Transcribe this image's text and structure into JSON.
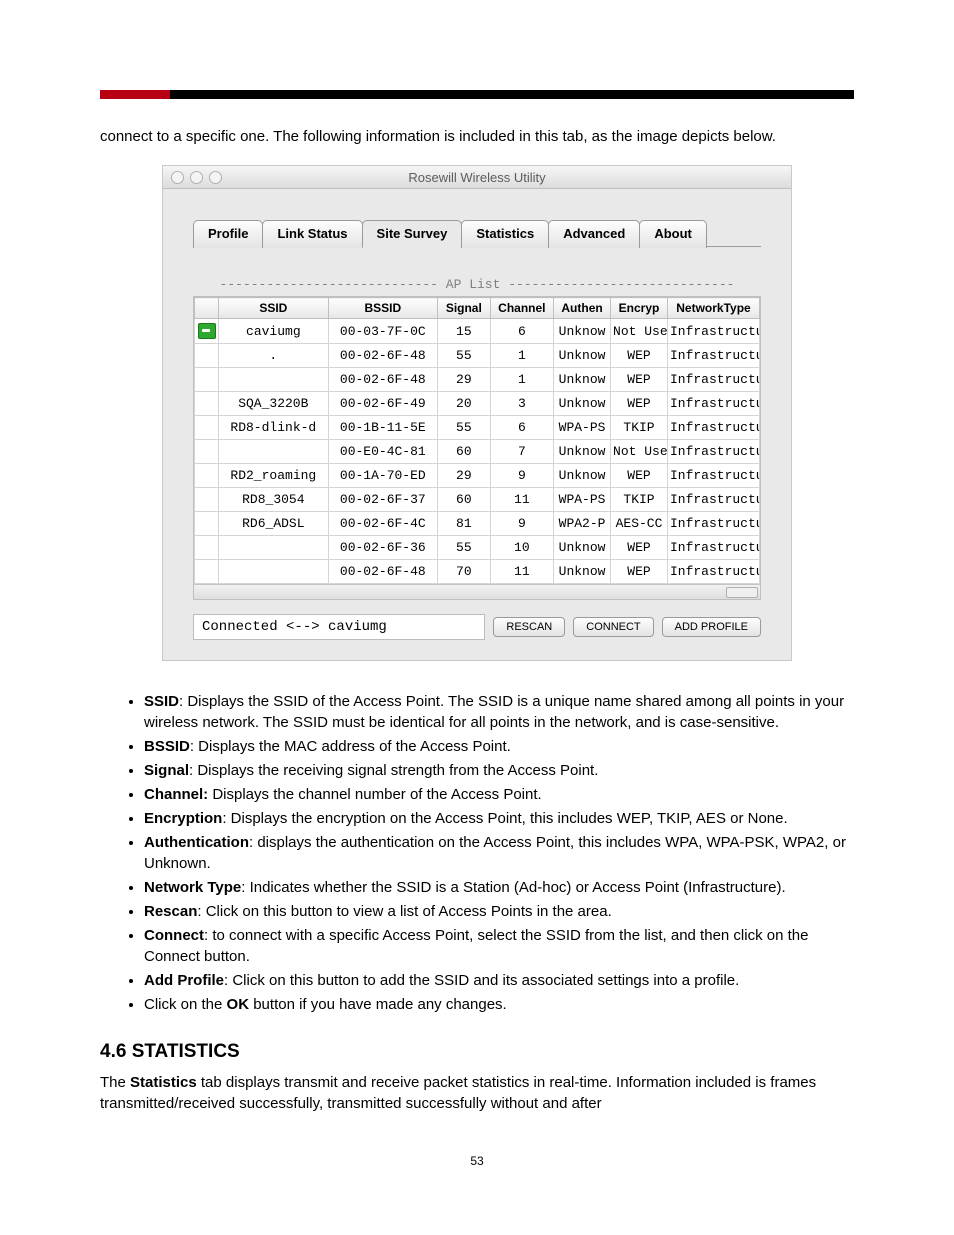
{
  "topbar": {
    "red_color": "#b80015",
    "black_color": "#000000"
  },
  "intro": "connect to a specific one.  The following information is included in this tab, as the image depicts below.",
  "window": {
    "title": "Rosewill Wireless Utility",
    "tabs": [
      "Profile",
      "Link Status",
      "Site Survey",
      "Statistics",
      "Advanced",
      "About"
    ],
    "active_tab_index": 2,
    "ap_list_label": "----------------------------  AP List  -----------------------------",
    "columns": {
      "icon": "",
      "ssid": "SSID",
      "bssid": "BSSID",
      "signal": "Signal",
      "channel": "Channel",
      "authen": "Authen",
      "encryp": "Encryp",
      "ntype": "NetworkType"
    },
    "col_widths": {
      "icon": 22,
      "ssid": 100,
      "bssid": 100,
      "signal": 48,
      "channel": 58,
      "authen": 52,
      "encryp": 52,
      "ntype": 84
    },
    "rows": [
      {
        "connected": true,
        "ssid": "caviumg",
        "bssid": "00-03-7F-0C",
        "signal": "15",
        "channel": "6",
        "authen": "Unknow",
        "encryp": "Not Use",
        "ntype": "Infrastructu"
      },
      {
        "connected": false,
        "ssid": ".",
        "bssid": "00-02-6F-48",
        "signal": "55",
        "channel": "1",
        "authen": "Unknow",
        "encryp": "WEP",
        "ntype": "Infrastructu"
      },
      {
        "connected": false,
        "ssid": "",
        "bssid": "00-02-6F-48",
        "signal": "29",
        "channel": "1",
        "authen": "Unknow",
        "encryp": "WEP",
        "ntype": "Infrastructu"
      },
      {
        "connected": false,
        "ssid": "SQA_3220B",
        "bssid": "00-02-6F-49",
        "signal": "20",
        "channel": "3",
        "authen": "Unknow",
        "encryp": "WEP",
        "ntype": "Infrastructu"
      },
      {
        "connected": false,
        "ssid": "RD8-dlink-d",
        "bssid": "00-1B-11-5E",
        "signal": "55",
        "channel": "6",
        "authen": "WPA-PS",
        "encryp": "TKIP",
        "ntype": "Infrastructu"
      },
      {
        "connected": false,
        "ssid": "",
        "bssid": "00-E0-4C-81",
        "signal": "60",
        "channel": "7",
        "authen": "Unknow",
        "encryp": "Not Use",
        "ntype": "Infrastructu"
      },
      {
        "connected": false,
        "ssid": "RD2_roaming",
        "bssid": "00-1A-70-ED",
        "signal": "29",
        "channel": "9",
        "authen": "Unknow",
        "encryp": "WEP",
        "ntype": "Infrastructu"
      },
      {
        "connected": false,
        "ssid": "RD8_3054",
        "bssid": "00-02-6F-37",
        "signal": "60",
        "channel": "11",
        "authen": "WPA-PS",
        "encryp": "TKIP",
        "ntype": "Infrastructu"
      },
      {
        "connected": false,
        "ssid": "RD6_ADSL",
        "bssid": "00-02-6F-4C",
        "signal": "81",
        "channel": "9",
        "authen": "WPA2-P",
        "encryp": "AES-CC",
        "ntype": "Infrastructu"
      },
      {
        "connected": false,
        "ssid": "",
        "bssid": "00-02-6F-36",
        "signal": "55",
        "channel": "10",
        "authen": "Unknow",
        "encryp": "WEP",
        "ntype": "Infrastructu"
      },
      {
        "connected": false,
        "ssid": "",
        "bssid": "00-02-6F-48",
        "signal": "70",
        "channel": "11",
        "authen": "Unknow",
        "encryp": "WEP",
        "ntype": "Infrastructu"
      }
    ],
    "status": "Connected <--> caviumg",
    "buttons": {
      "rescan": "RESCAN",
      "connect": "CONNECT",
      "add_profile": "ADD PROFILE"
    }
  },
  "defs": [
    {
      "term": "SSID",
      "text": ": Displays the SSID of the Access Point. The SSID is a unique name shared among all points in your wireless network. The SSID must be identical for all points in the network, and is case-sensitive."
    },
    {
      "term": "BSSID",
      "text": ": Displays the MAC address of the Access Point."
    },
    {
      "term": "Signal",
      "text": ": Displays the receiving signal strength from the Access Point."
    },
    {
      "term": "Channel:",
      "text": " Displays the channel number of the Access Point."
    },
    {
      "term": "Encryption",
      "text": ": Displays the encryption on the Access Point, this includes WEP, TKIP, AES or None."
    },
    {
      "term": "Authentication",
      "text": ": displays the authentication on the Access Point, this includes WPA, WPA-PSK, WPA2, or Unknown."
    },
    {
      "term": "Network Type",
      "text": ": Indicates whether the SSID is a Station (Ad-hoc) or Access Point (Infrastructure)."
    },
    {
      "term": "Rescan",
      "text": ": Click on this button to view a list of Access Points in the area."
    },
    {
      "term": "Connect",
      "text": ": to connect with a specific Access Point, select the SSID from the list, and then click on the Connect button."
    },
    {
      "term": "Add Profile",
      "text": ": Click on this button to add the SSID and its associated settings into a profile."
    },
    {
      "term": "",
      "text": "Click on the ",
      "bold_inner": "OK",
      "tail": " button if you have made any changes."
    }
  ],
  "section": {
    "heading": "4.6 STATISTICS",
    "p_lead": "The ",
    "p_bold": "Statistics",
    "p_tail": " tab displays transmit and receive packet statistics in real-time. Information included is frames transmitted/received successfully, transmitted successfully without and after"
  },
  "page_number": "53"
}
